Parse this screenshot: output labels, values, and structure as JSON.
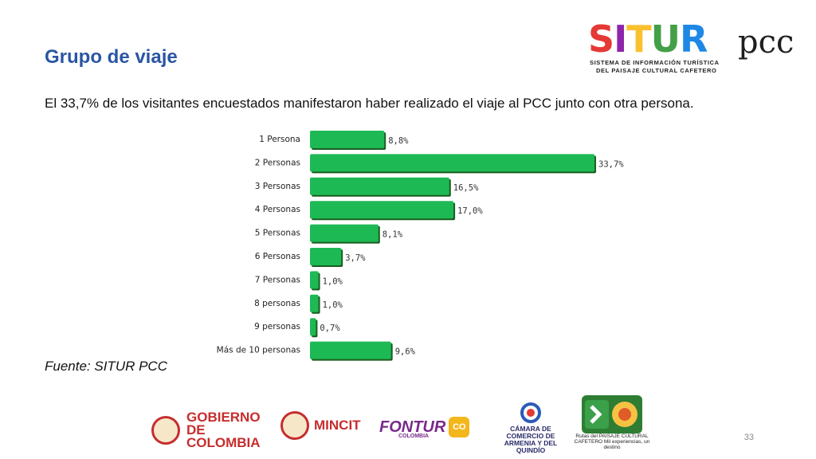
{
  "header": {
    "title": "Grupo de viaje",
    "subtitle": "El 33,7% de los visitantes encuestados manifestaron haber realizado el viaje al PCC junto con otra persona.",
    "source": "Fuente: SITUR PCC",
    "page_number": "33"
  },
  "brand_logo": {
    "word": "SITUR",
    "suffix": "pcc",
    "line1": "SISTEMA DE INFORMACIÓN TURÍSTICA",
    "line2": "DEL PAISAJE CULTURAL CAFETERO",
    "colors": [
      "#e53935",
      "#8e24aa",
      "#fbc02d",
      "#43a047",
      "#1e88e5"
    ]
  },
  "footer_logos": {
    "gobierno": "GOBIERNO DE COLOMBIA",
    "mincit": "MINCIT",
    "fontur": "FONTUR",
    "fontur_sub": "COLOMBIA",
    "co_mark": "CO",
    "camara": "CÁMARA DE COMERCIO DE ARMENIA Y DEL QUINDÍO",
    "rutas": "Rutas del PAISAJE CULTURAL CAFETERO Mil experiencias, un destino"
  },
  "chart_data": {
    "type": "bar",
    "orientation": "horizontal",
    "categories": [
      "1 Persona",
      "2 Personas",
      "3 Personas",
      "4 Personas",
      "5 Personas",
      "6 Personas",
      "7 Personas",
      "8 personas",
      "9 personas",
      "Más de 10 personas"
    ],
    "values": [
      8.8,
      33.7,
      16.5,
      17.0,
      8.1,
      3.7,
      1.0,
      1.0,
      0.7,
      9.6
    ],
    "labels": [
      "8,8%",
      "33,7%",
      "16,5%",
      "17,0%",
      "8,1%",
      "3,7%",
      "1,0%",
      "1,0%",
      "0,7%",
      "9,6%"
    ],
    "bar_color": "#1db954",
    "grid": false,
    "legend": "none"
  }
}
